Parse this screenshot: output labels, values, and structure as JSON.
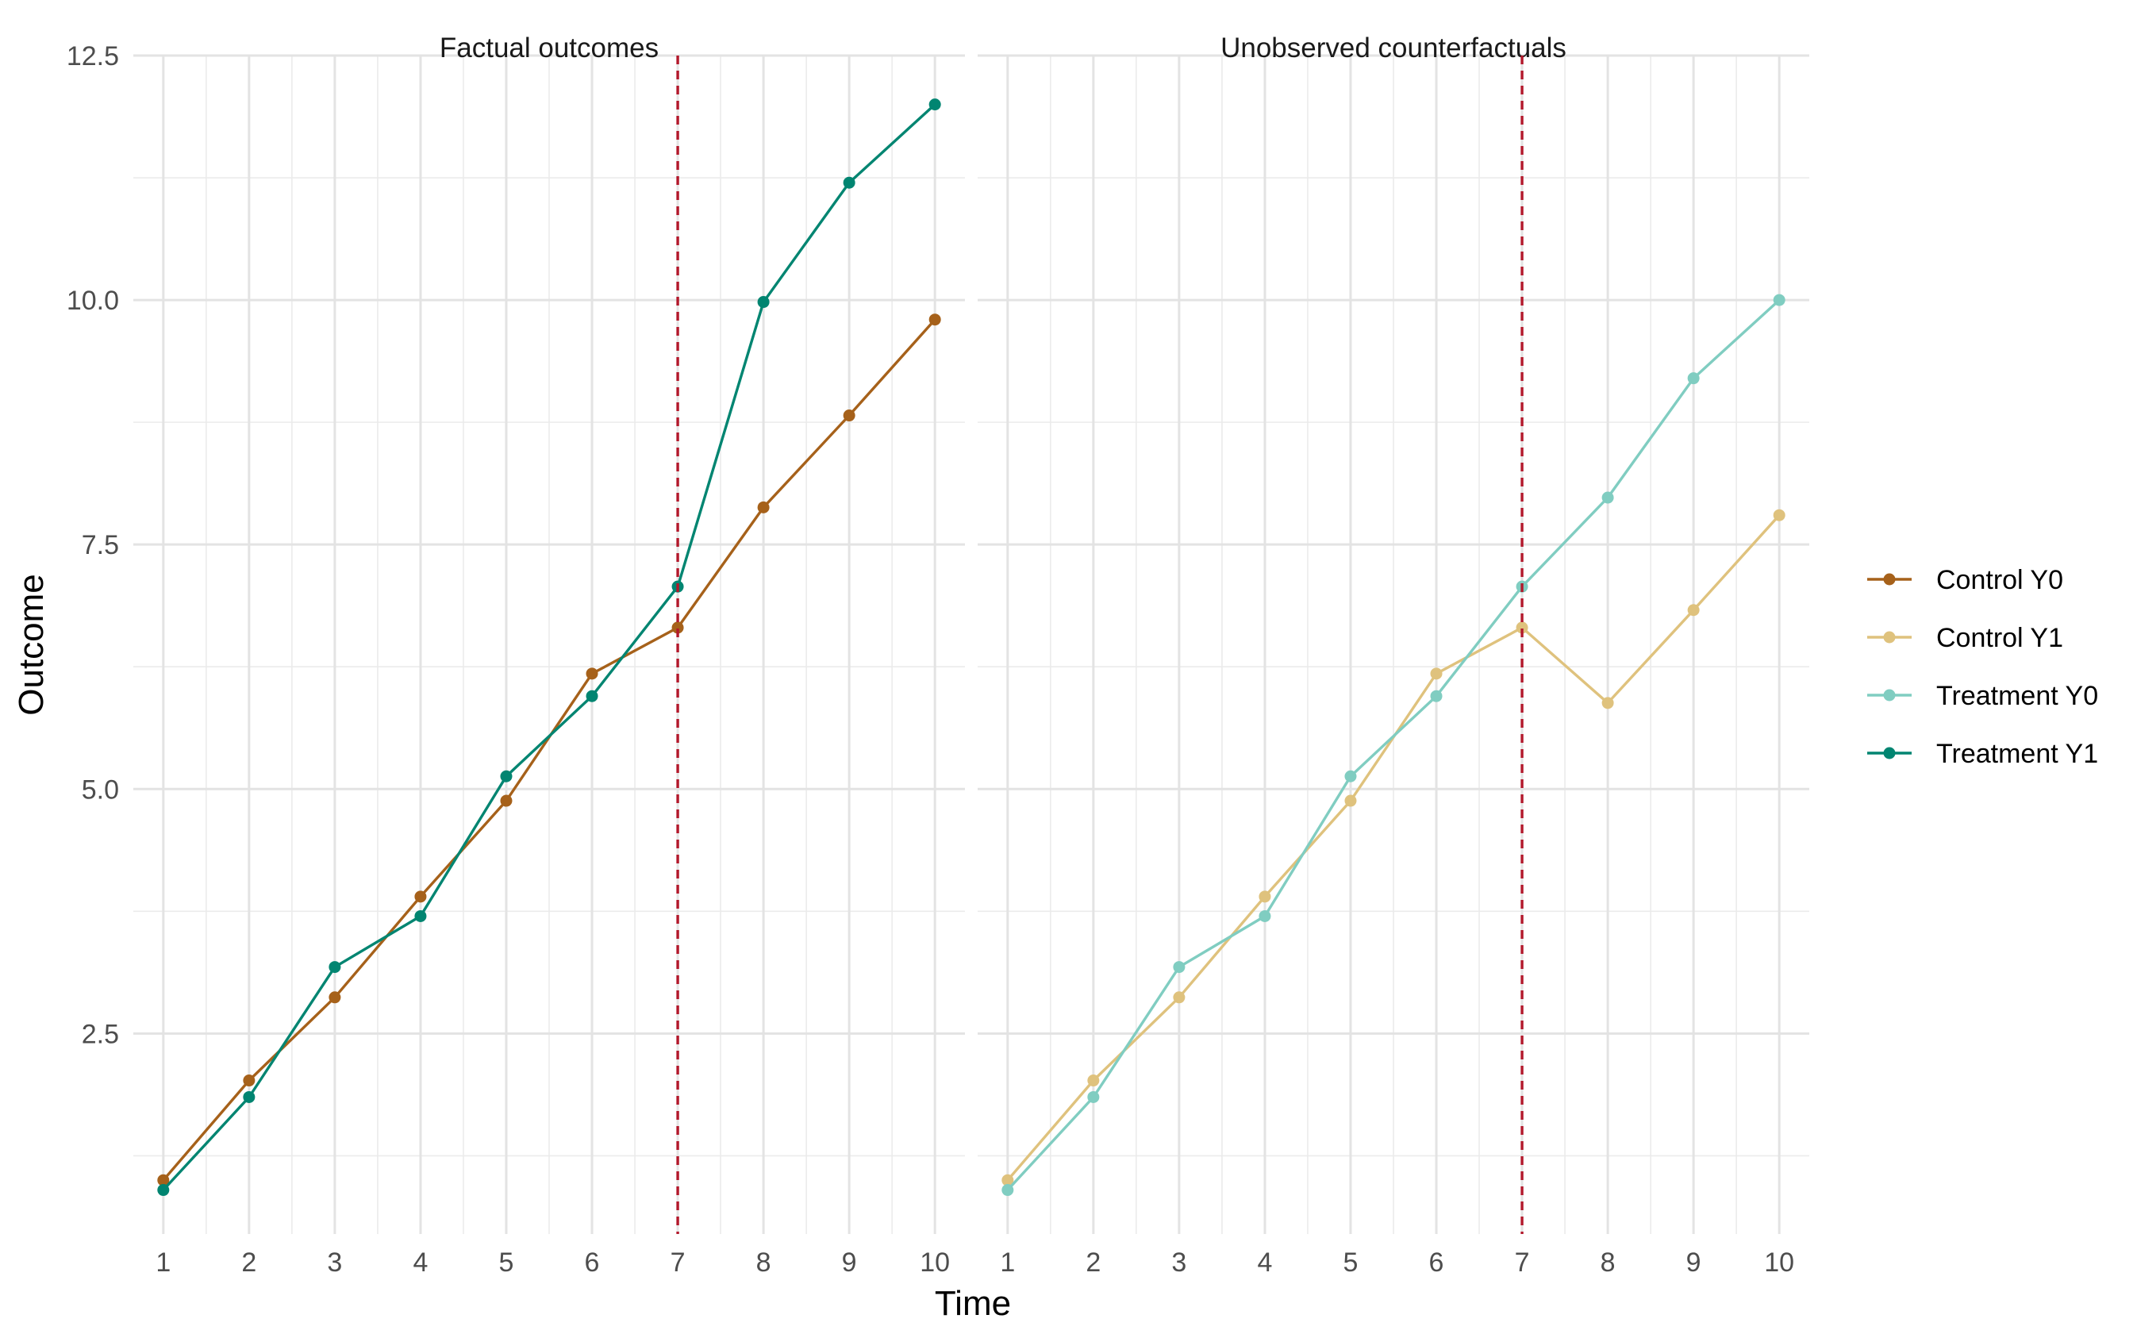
{
  "chart_data": {
    "type": "line",
    "title": "",
    "xlabel": "Time",
    "ylabel": "Outcome",
    "x": [
      1,
      2,
      3,
      4,
      5,
      6,
      7,
      8,
      9,
      10
    ],
    "xlim": [
      0.65,
      10.35
    ],
    "ylim": [
      0.45,
      12.5
    ],
    "y_ticks": [
      2.5,
      5.0,
      7.5,
      10.0,
      12.5
    ],
    "y_tick_labels": [
      "2.5",
      "5.0",
      "7.5",
      "10.0",
      "12.5"
    ],
    "x_tick_labels": [
      "1",
      "2",
      "3",
      "4",
      "5",
      "6",
      "7",
      "8",
      "9",
      "10"
    ],
    "grid": true,
    "legend_position": "right",
    "reference_line": {
      "x": 7,
      "style": "dashed",
      "color": "#b2182b"
    },
    "panels": [
      {
        "title": "Factual outcomes",
        "series": [
          {
            "name": "Control Y0",
            "color": "#a6611a",
            "values": [
              1.0,
              2.02,
              2.87,
              3.9,
              4.88,
              6.18,
              6.65,
              7.88,
              8.82,
              9.8
            ]
          },
          {
            "name": "Treatment Y1",
            "color": "#018571",
            "values": [
              0.9,
              1.85,
              3.18,
              3.7,
              5.13,
              5.95,
              7.07,
              9.98,
              11.2,
              12.0
            ]
          }
        ]
      },
      {
        "title": "Unobserved counterfactuals",
        "series": [
          {
            "name": "Control Y1",
            "color": "#dfc27d",
            "values": [
              1.0,
              2.02,
              2.87,
              3.9,
              4.88,
              6.18,
              6.65,
              5.88,
              6.83,
              7.8
            ]
          },
          {
            "name": "Treatment Y0",
            "color": "#80cdc1",
            "values": [
              0.9,
              1.85,
              3.18,
              3.7,
              5.13,
              5.95,
              7.07,
              7.98,
              9.2,
              10.0
            ]
          }
        ]
      }
    ],
    "legend": [
      {
        "name": "Control Y0",
        "color": "#a6611a"
      },
      {
        "name": "Control Y1",
        "color": "#dfc27d"
      },
      {
        "name": "Treatment Y0",
        "color": "#80cdc1"
      },
      {
        "name": "Treatment Y1",
        "color": "#018571"
      }
    ]
  }
}
